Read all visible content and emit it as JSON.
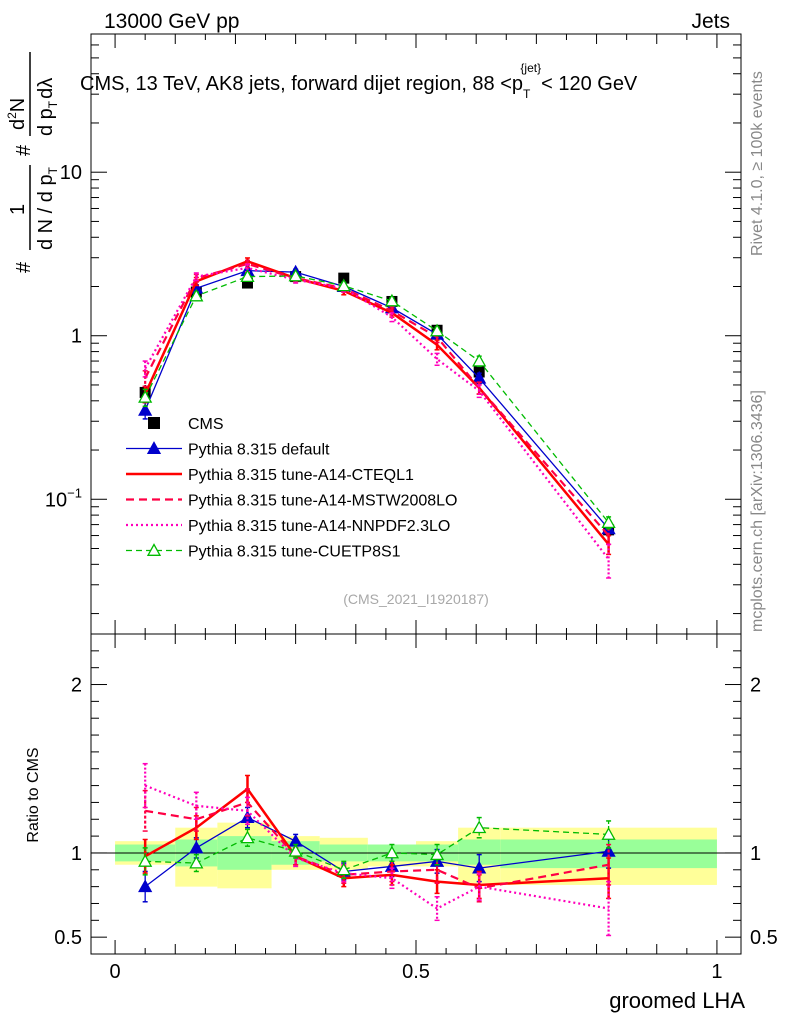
{
  "header": {
    "energy_label": "13000 GeV pp",
    "category_label": "Jets"
  },
  "side_labels": {
    "rivet": "Rivet 4.1.0, ≥ 100k events",
    "mcplots": "mcplots.cern.ch [arXiv:1306.3436]"
  },
  "chart_data": [
    {
      "type": "line",
      "panel": "main",
      "title_parts": [
        "CMS, 13 TeV, AK8 jets, forward dijet region, 88 <p",
        "T",
        "{jet}",
        "< 120 GeV"
      ],
      "ylabel_parts": [
        "#",
        "1",
        "d N / d p",
        "T",
        "#",
        "d",
        "2",
        "N",
        "d p",
        "T",
        "dλ"
      ],
      "yscale": "log",
      "ylim": [
        0.015,
        70
      ],
      "xlim": [
        -0.04,
        1.04
      ],
      "yticks": [
        {
          "value": 0.1,
          "base": "10",
          "exp": "−1"
        },
        {
          "value": 1,
          "base": "1",
          "exp": ""
        },
        {
          "value": 10,
          "base": "10",
          "exp": ""
        }
      ],
      "watermark": "(CMS_2021_I1920187)",
      "bins": [
        [
          0.0,
          0.1
        ],
        [
          0.1,
          0.17
        ],
        [
          0.17,
          0.26
        ],
        [
          0.26,
          0.34
        ],
        [
          0.34,
          0.42
        ],
        [
          0.42,
          0.5
        ],
        [
          0.5,
          0.57
        ],
        [
          0.57,
          0.64
        ],
        [
          0.64,
          1.0
        ]
      ],
      "x": [
        0.05,
        0.135,
        0.22,
        0.3,
        0.38,
        0.46,
        0.535,
        0.605,
        0.82
      ],
      "series": [
        {
          "name": "CMS",
          "style": "data",
          "color": "#000000",
          "values": [
            0.45,
            1.85,
            2.1,
            2.3,
            2.25,
            1.62,
            1.08,
            0.6,
            0.065
          ],
          "errors": [
            0.05,
            0.12,
            0.12,
            0.12,
            0.12,
            0.1,
            0.07,
            0.05,
            0.006
          ]
        },
        {
          "name": "Pythia 8.315 default",
          "style": "solid-triangle",
          "color": "#0000cc",
          "values": [
            0.35,
            1.95,
            2.5,
            2.45,
            2.0,
            1.48,
            1.02,
            0.55,
            0.066
          ],
          "errors": [
            0.04,
            0.1,
            0.12,
            0.1,
            0.1,
            0.08,
            0.06,
            0.04,
            0.006
          ]
        },
        {
          "name": "Pythia 8.315 tune-A14-CTEQL1",
          "style": "solid-thick",
          "color": "#ff0000",
          "values": [
            0.44,
            2.15,
            2.85,
            2.25,
            1.88,
            1.38,
            0.88,
            0.48,
            0.053
          ],
          "errors": [
            0.05,
            0.12,
            0.14,
            0.1,
            0.1,
            0.08,
            0.06,
            0.04,
            0.007
          ]
        },
        {
          "name": "Pythia 8.315 tune-A14-MSTW2008LO",
          "style": "dashed",
          "color": "#ff0044",
          "values": [
            0.55,
            2.25,
            2.75,
            2.25,
            1.95,
            1.42,
            0.98,
            0.48,
            0.06
          ],
          "errors": [
            0.06,
            0.12,
            0.14,
            0.1,
            0.1,
            0.08,
            0.07,
            0.04,
            0.007
          ]
        },
        {
          "name": "Pythia 8.315 tune-A14-NNPDF2.3LO",
          "style": "dotted",
          "color": "#ff00bb",
          "values": [
            0.63,
            2.3,
            2.6,
            2.2,
            1.95,
            1.3,
            0.72,
            0.46,
            0.043
          ],
          "errors": [
            0.07,
            0.12,
            0.14,
            0.1,
            0.1,
            0.08,
            0.06,
            0.04,
            0.01
          ]
        },
        {
          "name": "Pythia 8.315 tune-CUETP8S1",
          "style": "open-triangle",
          "color": "#00bb00",
          "values": [
            0.42,
            1.75,
            2.3,
            2.32,
            2.02,
            1.63,
            1.07,
            0.7,
            0.072
          ],
          "errors": [
            0.05,
            0.1,
            0.12,
            0.1,
            0.1,
            0.08,
            0.06,
            0.05,
            0.006
          ]
        }
      ]
    },
    {
      "type": "line",
      "panel": "ratio",
      "ylabel": "Ratio to CMS",
      "xlabel": "groomed LHA",
      "ylim": [
        0.4,
        2.3
      ],
      "yticks": [
        {
          "value": 0.5,
          "label": "0.5"
        },
        {
          "value": 1,
          "label": "1"
        },
        {
          "value": 2,
          "label": "2"
        }
      ],
      "xticks": [
        {
          "value": 0,
          "label": "0"
        },
        {
          "value": 0.5,
          "label": "0.5"
        },
        {
          "value": 1,
          "label": "1"
        }
      ],
      "bands": {
        "inner_color": "#99ff99",
        "outer_color": "#ffff99",
        "inner": [
          [
            0.95,
            1.05
          ],
          [
            0.92,
            1.08
          ],
          [
            0.9,
            1.1
          ],
          [
            0.93,
            1.07
          ],
          [
            0.95,
            1.05
          ],
          [
            0.95,
            1.05
          ],
          [
            0.95,
            1.05
          ],
          [
            0.93,
            1.08
          ],
          [
            0.91,
            1.08
          ]
        ],
        "outer": [
          [
            0.93,
            1.07
          ],
          [
            0.8,
            1.15
          ],
          [
            0.79,
            1.18
          ],
          [
            0.9,
            1.1
          ],
          [
            0.9,
            1.09
          ],
          [
            0.92,
            1.05
          ],
          [
            0.92,
            1.07
          ],
          [
            0.82,
            1.15
          ],
          [
            0.81,
            1.15
          ]
        ]
      },
      "series": [
        {
          "name": "Pythia 8.315 default",
          "style": "solid-triangle",
          "color": "#0000cc",
          "values": [
            0.8,
            1.03,
            1.21,
            1.07,
            0.89,
            0.92,
            0.95,
            0.91,
            1.01
          ],
          "errors": [
            0.09,
            0.06,
            0.06,
            0.04,
            0.05,
            0.06,
            0.07,
            0.08,
            0.1
          ]
        },
        {
          "name": "Pythia 8.315 tune-A14-CTEQL1",
          "style": "solid-thick",
          "color": "#ff0000",
          "values": [
            0.98,
            1.15,
            1.38,
            0.98,
            0.85,
            0.87,
            0.83,
            0.81,
            0.85
          ],
          "errors": [
            0.1,
            0.07,
            0.08,
            0.05,
            0.05,
            0.06,
            0.07,
            0.08,
            0.12
          ]
        },
        {
          "name": "Pythia 8.315 tune-A14-MSTW2008LO",
          "style": "dashed",
          "color": "#ff0044",
          "values": [
            1.25,
            1.2,
            1.3,
            0.98,
            0.87,
            0.89,
            0.9,
            0.79,
            0.93
          ],
          "errors": [
            0.12,
            0.07,
            0.08,
            0.05,
            0.05,
            0.06,
            0.08,
            0.08,
            0.12
          ]
        },
        {
          "name": "Pythia 8.315 tune-A14-NNPDF2.3LO",
          "style": "dotted",
          "color": "#ff00bb",
          "values": [
            1.4,
            1.28,
            1.25,
            0.97,
            0.88,
            0.85,
            0.67,
            0.8,
            0.67
          ],
          "errors": [
            0.13,
            0.08,
            0.08,
            0.05,
            0.05,
            0.06,
            0.07,
            0.08,
            0.16
          ]
        },
        {
          "name": "Pythia 8.315 tune-CUETP8S1",
          "style": "open-triangle",
          "color": "#00bb00",
          "values": [
            0.95,
            0.94,
            1.09,
            1.01,
            0.9,
            1.0,
            0.99,
            1.15,
            1.11
          ],
          "errors": [
            0.08,
            0.05,
            0.05,
            0.04,
            0.05,
            0.05,
            0.06,
            0.06,
            0.08
          ]
        }
      ]
    }
  ]
}
